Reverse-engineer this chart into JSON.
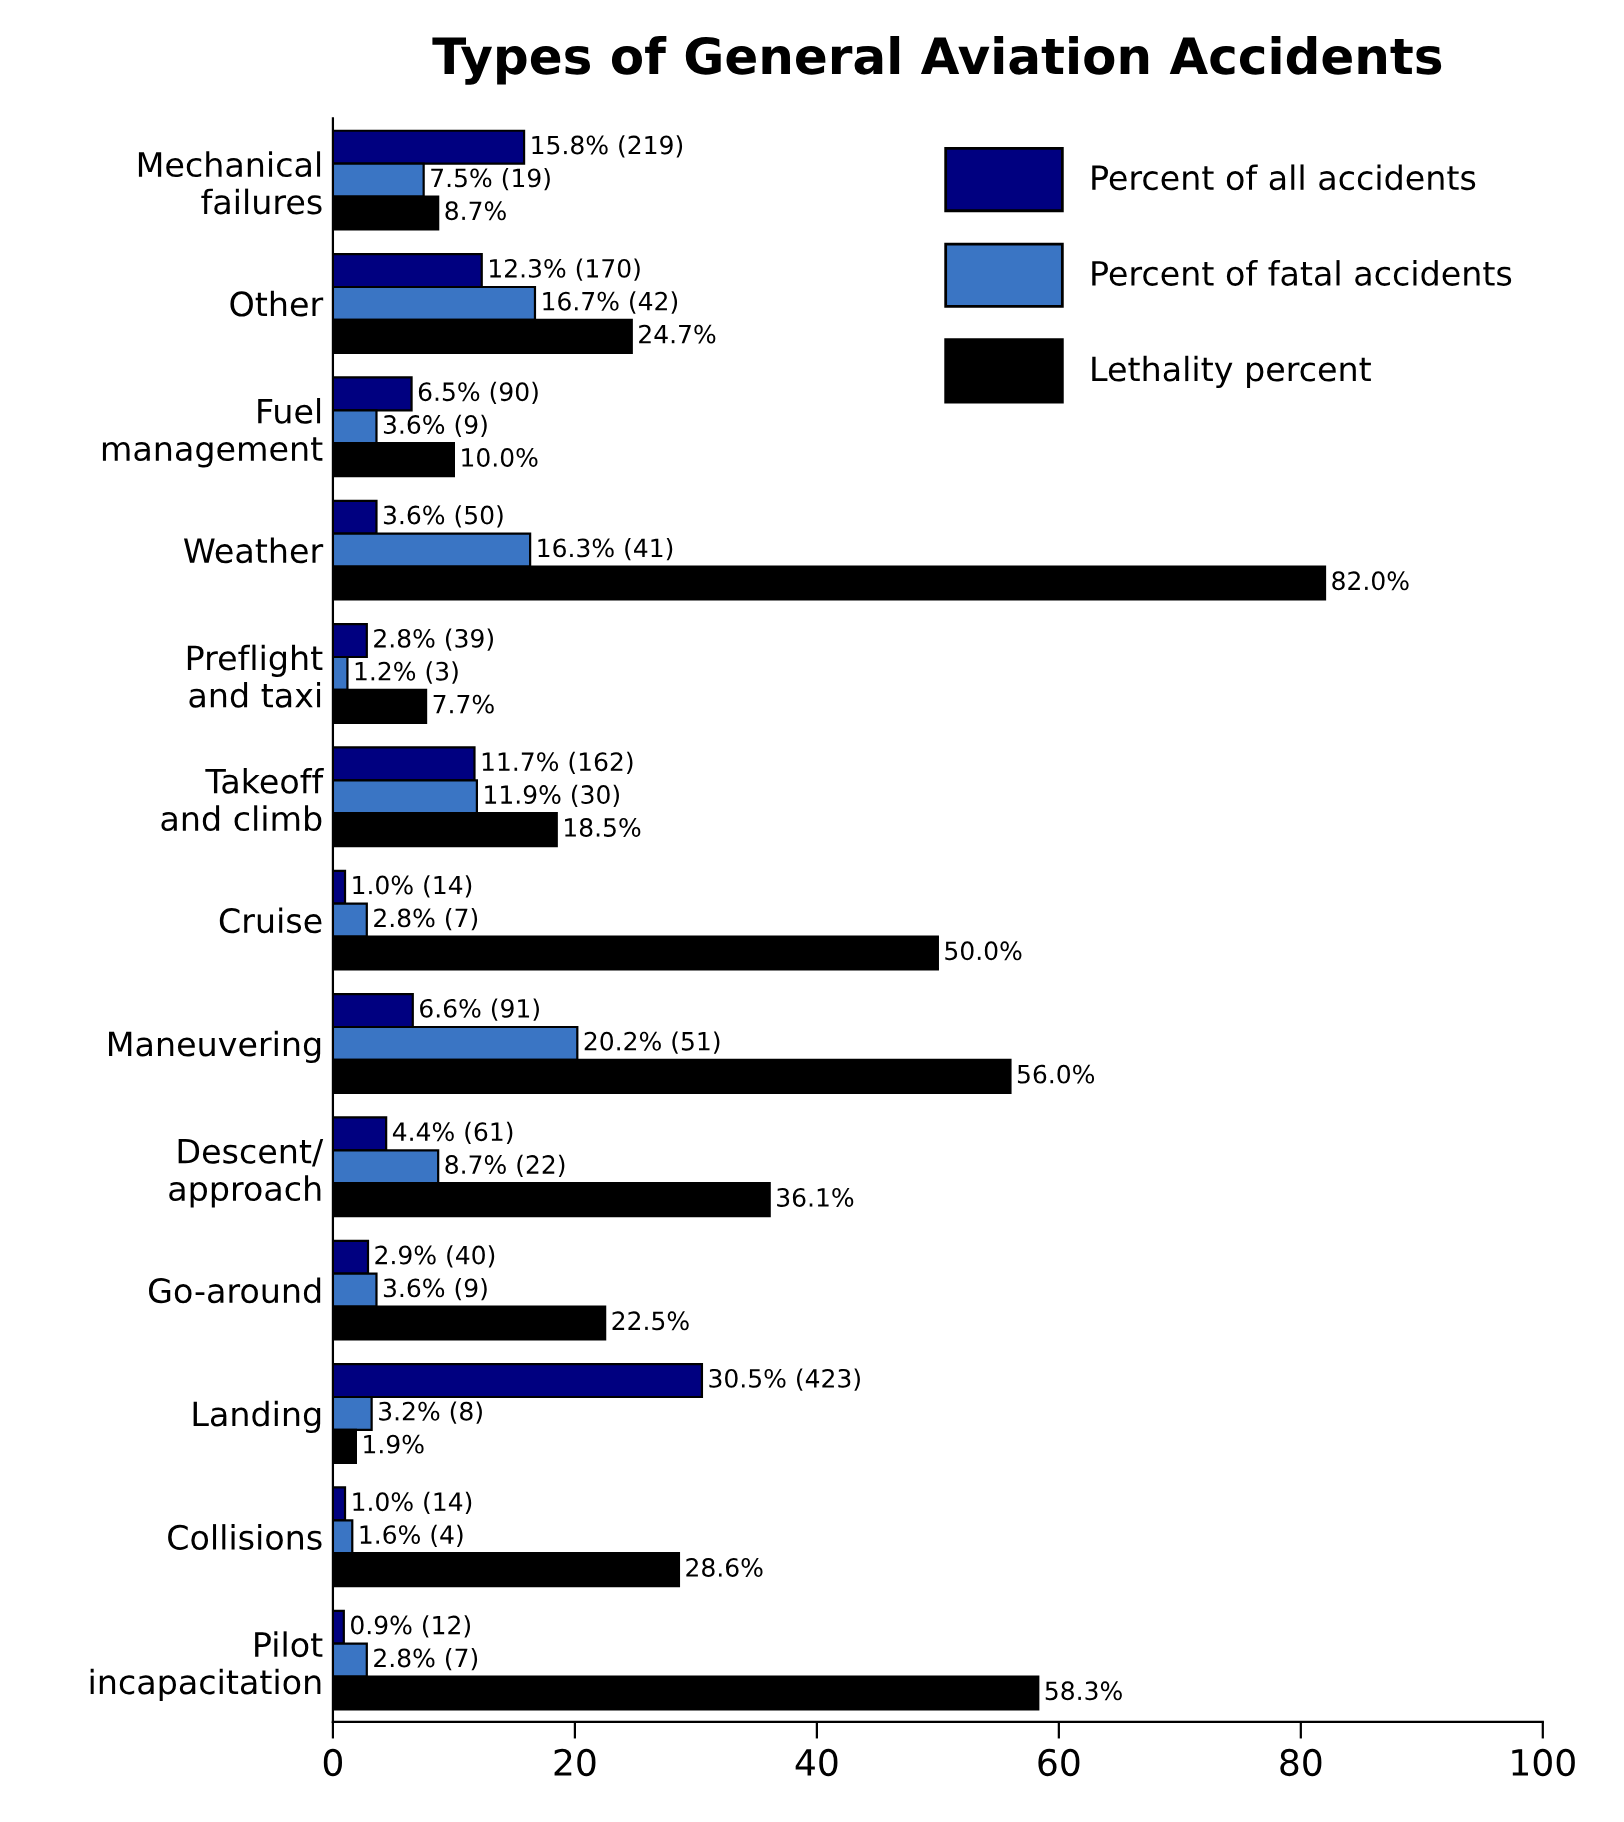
{
  "chart_data": {
    "type": "bar",
    "orientation": "horizontal",
    "title": "Types of General Aviation Accidents",
    "categories": [
      "Mechanical\nfailures",
      "Other",
      "Fuel\nmanagement",
      "Weather",
      "Preflight\nand taxi",
      "Takeoff\nand climb",
      "Cruise",
      "Maneuvering",
      "Descent/\napproach",
      "Go-around",
      "Landing",
      "Collisions",
      "Pilot\nincapacitation"
    ],
    "series": [
      {
        "name": "Percent of all accidents",
        "color": "#000080",
        "values": [
          15.8,
          12.3,
          6.5,
          3.6,
          2.8,
          11.7,
          1.0,
          6.6,
          4.4,
          2.9,
          30.5,
          1.0,
          0.9
        ],
        "value_labels": [
          "15.8% (219)",
          "12.3% (170)",
          "6.5% (90)",
          "3.6% (50)",
          "2.8% (39)",
          "11.7% (162)",
          "1.0% (14)",
          "6.6% (91)",
          "4.4% (61)",
          "2.9% (40)",
          "30.5% (423)",
          "1.0% (14)",
          "0.9% (12)"
        ]
      },
      {
        "name": "Percent of fatal accidents",
        "color": "#3a75c4",
        "values": [
          7.5,
          16.7,
          3.6,
          16.3,
          1.2,
          11.9,
          2.8,
          20.2,
          8.7,
          3.6,
          3.2,
          1.6,
          2.8
        ],
        "value_labels": [
          "7.5% (19)",
          "16.7% (42)",
          "3.6% (9)",
          "16.3% (41)",
          "1.2% (3)",
          "11.9% (30)",
          "2.8% (7)",
          "20.2% (51)",
          "8.7% (22)",
          "3.6% (9)",
          "3.2% (8)",
          "1.6% (4)",
          "2.8% (7)"
        ]
      },
      {
        "name": "Lethality percent",
        "color": "#000000",
        "values": [
          8.7,
          24.7,
          10.0,
          82.0,
          7.7,
          18.5,
          50.0,
          56.0,
          36.1,
          22.5,
          1.9,
          28.6,
          58.3
        ],
        "value_labels": [
          "8.7%",
          "24.7%",
          "10.0%",
          "82.0%",
          "7.7%",
          "18.5%",
          "50.0%",
          "56.0%",
          "36.1%",
          "22.5%",
          "1.9%",
          "28.6%",
          "58.3%"
        ]
      }
    ],
    "xlim": [
      0,
      100
    ],
    "xticks": [
      0,
      20,
      40,
      60,
      80,
      100
    ],
    "grid": false,
    "legend": "top right"
  }
}
